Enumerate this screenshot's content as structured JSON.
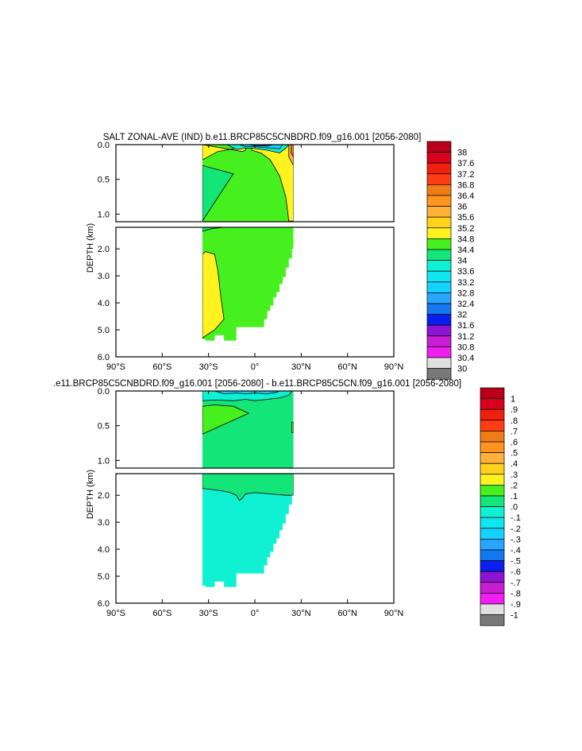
{
  "chart_data": [
    {
      "type": "heatmap",
      "title": "SALT ZONAL-AVE (IND) b.e11.BRCP85C5CNBDRD.f09_g16.001 [2056-2080]",
      "xlabel": "",
      "ylabel": "DEPTH (km)",
      "x_ticks": [
        "90°S",
        "60°S",
        "30°S",
        "0°",
        "30°N",
        "60°N",
        "90°N"
      ],
      "x_tick_values": [
        -90,
        -60,
        -30,
        0,
        30,
        60,
        90
      ],
      "upper_y_ticks": [
        "0.0",
        "0.5",
        "1.0"
      ],
      "upper_y_values": [
        0,
        0.5,
        1.0
      ],
      "lower_y_ticks": [
        "2.0",
        "3.0",
        "4.0",
        "5.0",
        "6.0"
      ],
      "lower_y_values": [
        2,
        3,
        4,
        5,
        6
      ],
      "colorbar_labels": [
        "38",
        "37.6",
        "37.2",
        "36.8",
        "36.4",
        "36",
        "35.6",
        "35.2",
        "34.8",
        "34.4",
        "34",
        "33.6",
        "33.2",
        "32.8",
        "32.4",
        "32",
        "31.6",
        "31.2",
        "30.8",
        "30.4",
        "30"
      ],
      "colors": [
        "#b8001a",
        "#d8001c",
        "#f0200f",
        "#ff3c14",
        "#f07c18",
        "#ff941e",
        "#ffb13a",
        "#ffd21e",
        "#fff21e",
        "#46f01e",
        "#14e578",
        "#10f0d2",
        "#10e6f0",
        "#14d2ff",
        "#28a6ff",
        "#1478f0",
        "#0a1ef0",
        "#8c14d2",
        "#c81ed2",
        "#f01ef0",
        "#e0e0e0",
        "#787878"
      ],
      "fields": {
        "upper_bg": "#46f01e",
        "lower_bg": "#46f01e",
        "upper": [
          {
            "c": "#fff21e",
            "pts": [
              [
                -34,
                0
              ],
              [
                -34,
                0.22
              ],
              [
                -24,
                0.1
              ],
              [
                -14,
                0.06
              ],
              [
                -6,
                0
              ],
              [
                -6,
                0.08
              ],
              [
                -8,
                0.1
              ]
            ]
          },
          {
            "c": "#fff21e",
            "pts": [
              [
                -2,
                0
              ],
              [
                -2,
                0.08
              ],
              [
                4,
                0.12
              ],
              [
                10,
                0.22
              ],
              [
                16,
                0.45
              ],
              [
                20,
                0.75
              ],
              [
                22,
                1.1
              ],
              [
                25,
                1.1
              ],
              [
                25,
                0
              ]
            ]
          },
          {
            "c": "#14e578",
            "pts": [
              [
                -34,
                0.3
              ],
              [
                -14,
                0.42
              ],
              [
                -34,
                1.1
              ]
            ]
          },
          {
            "c": "#10f0d2",
            "pts": [
              [
                -18,
                0
              ],
              [
                -12,
                0.07
              ],
              [
                -6,
                0.05
              ],
              [
                -2,
                0.05
              ],
              [
                8,
                0.08
              ],
              [
                16,
                0.12
              ],
              [
                20,
                0.05
              ],
              [
                22,
                0
              ]
            ]
          },
          {
            "c": "#14d2ff",
            "pts": [
              [
                -10,
                0
              ],
              [
                -6,
                0.03
              ],
              [
                0,
                0.03
              ],
              [
                10,
                0.05
              ],
              [
                16,
                0.06
              ],
              [
                18,
                0
              ]
            ]
          },
          {
            "c": "#1478f0",
            "pts": [
              [
                -4,
                0
              ],
              [
                0,
                0.015
              ],
              [
                8,
                0.02
              ],
              [
                12,
                0
              ]
            ]
          },
          {
            "c": "#ffb13a",
            "pts": [
              [
                22,
                0
              ],
              [
                22,
                0.18
              ],
              [
                25,
                0.3
              ],
              [
                25,
                0
              ]
            ]
          },
          {
            "c": "#f07c18",
            "pts": [
              [
                23.5,
                0
              ],
              [
                23.5,
                0.12
              ],
              [
                25,
                0.18
              ],
              [
                25,
                0
              ]
            ]
          }
        ],
        "lower": [
          {
            "c": "#14e578",
            "pts": [
              [
                -34,
                1.2
              ],
              [
                -34,
                1.35
              ],
              [
                -28,
                1.25
              ],
              [
                -20,
                1.2
              ]
            ]
          },
          {
            "c": "#fff21e",
            "pts": [
              [
                -34,
                2.2
              ],
              [
                -32,
                2.1
              ],
              [
                -26,
                2.2
              ],
              [
                -24,
                2.8
              ],
              [
                -22,
                3.8
              ],
              [
                -20,
                4.6
              ],
              [
                -26,
                5.0
              ],
              [
                -34,
                5.3
              ]
            ]
          }
        ]
      },
      "colorbar_position": "right",
      "grid": false
    },
    {
      "type": "heatmap",
      "title": ".e11.BRCP85C5CNBDRD.f09_g16.001 [2056-2080] - b.e11.BRCP85C5CN.f09_g16.001 [2056-2080]",
      "xlabel": "",
      "ylabel": "DEPTH (km)",
      "x_ticks": [
        "90°S",
        "60°S",
        "30°S",
        "0°",
        "30°N",
        "60°N",
        "90°N"
      ],
      "x_tick_values": [
        -90,
        -60,
        -30,
        0,
        30,
        60,
        90
      ],
      "upper_y_ticks": [
        "0.0",
        "0.5",
        "1.0"
      ],
      "upper_y_values": [
        0,
        0.5,
        1.0
      ],
      "lower_y_ticks": [
        "2.0",
        "3.0",
        "4.0",
        "5.0",
        "6.0"
      ],
      "lower_y_values": [
        2,
        3,
        4,
        5,
        6
      ],
      "colorbar_labels": [
        "1",
        ".9",
        ".8",
        ".7",
        ".6",
        ".5",
        ".4",
        ".3",
        ".2",
        ".1",
        ".0",
        "-.1",
        "-.2",
        "-.3",
        "-.4",
        "-.5",
        "-.6",
        "-.7",
        "-.8",
        "-.9",
        "-1"
      ],
      "colors": [
        "#b8001a",
        "#d8001c",
        "#f0200f",
        "#ff3c14",
        "#f07c18",
        "#ff941e",
        "#ffb13a",
        "#ffd21e",
        "#fff21e",
        "#46f01e",
        "#14e578",
        "#10f0d2",
        "#10e6f0",
        "#14d2ff",
        "#28a6ff",
        "#1478f0",
        "#0a1ef0",
        "#8c14d2",
        "#c81ed2",
        "#f01ef0",
        "#e0e0e0",
        "#787878"
      ],
      "fields": {
        "upper_bg": "#14e578",
        "lower_bg": "#10f0d2",
        "upper": [
          {
            "c": "#10f0d2",
            "pts": [
              [
                -34,
                0
              ],
              [
                -34,
                0.14
              ],
              [
                -26,
                0.13
              ],
              [
                -14,
                0.14
              ],
              [
                -6,
                0.12
              ],
              [
                0,
                0.14
              ],
              [
                8,
                0.12
              ],
              [
                16,
                0.1
              ],
              [
                22,
                0.06
              ],
              [
                24,
                0
              ]
            ]
          },
          {
            "c": "#46f01e",
            "pts": [
              [
                -34,
                0.22
              ],
              [
                -26,
                0.2
              ],
              [
                -14,
                0.22
              ],
              [
                -4,
                0.32
              ],
              [
                -12,
                0.4
              ],
              [
                -22,
                0.5
              ],
              [
                -34,
                0.62
              ]
            ]
          },
          {
            "c": "#46f01e",
            "pts": [
              [
                24,
                0.45
              ],
              [
                25,
                0.45
              ],
              [
                25,
                0.6
              ],
              [
                24,
                0.6
              ]
            ]
          },
          {
            "c": "#14d2ff",
            "pts": [
              [
                -26,
                0
              ],
              [
                -20,
                0.04
              ],
              [
                -12,
                0.03
              ],
              [
                -6,
                0.04
              ],
              [
                0,
                0.03
              ],
              [
                8,
                0.04
              ],
              [
                14,
                0.02
              ],
              [
                16,
                0
              ]
            ]
          }
        ],
        "lower": [
          {
            "c": "#14e578",
            "pts": [
              [
                -34,
                1.2
              ],
              [
                -34,
                1.75
              ],
              [
                -26,
                1.8
              ],
              [
                -20,
                1.85
              ],
              [
                -16,
                1.9
              ],
              [
                -12,
                2.0
              ],
              [
                -10,
                2.2
              ],
              [
                -8,
                2.1
              ],
              [
                -6,
                1.95
              ],
              [
                0,
                1.9
              ],
              [
                10,
                1.95
              ],
              [
                20,
                2.0
              ],
              [
                25,
                2.0
              ],
              [
                25,
                1.2
              ]
            ]
          }
        ]
      },
      "colorbar_position": "right",
      "grid": false
    }
  ]
}
